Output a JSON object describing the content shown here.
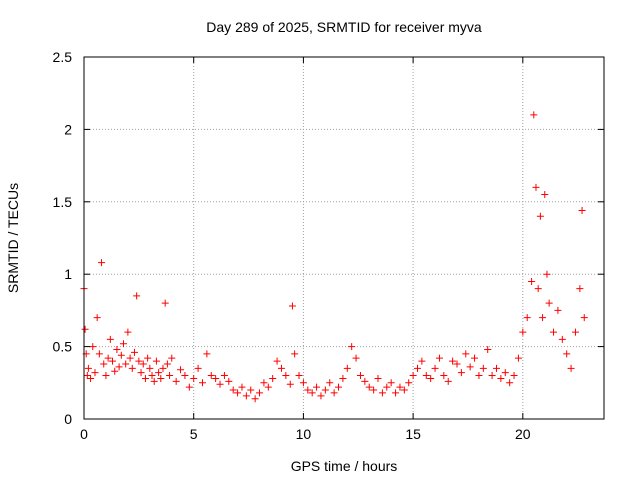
{
  "chart_data": {
    "type": "scatter",
    "title": "Day 289 of 2025, SRMTID for receiver myva",
    "xlabel": "GPS time / hours",
    "ylabel": "SRMTID / TECUs",
    "xlim": [
      0,
      23.7
    ],
    "ylim": [
      0,
      2.5
    ],
    "x_ticks": [
      0,
      5,
      10,
      15,
      20
    ],
    "x_tick_labels": [
      "0",
      "5",
      "10",
      "15",
      "20"
    ],
    "y_ticks": [
      0,
      0.5,
      1,
      1.5,
      2,
      2.5
    ],
    "y_tick_labels": [
      "0",
      "0.5",
      "1",
      "1.5",
      "2",
      "2.5"
    ],
    "grid": true,
    "marker": "+",
    "series": [
      {
        "name": "SRMTID",
        "color": "#ff0000",
        "x": [
          0.0,
          0.05,
          0.1,
          0.15,
          0.2,
          0.3,
          0.4,
          0.5,
          0.6,
          0.7,
          0.8,
          0.9,
          1.0,
          1.1,
          1.2,
          1.3,
          1.4,
          1.5,
          1.6,
          1.7,
          1.8,
          1.9,
          2.0,
          2.1,
          2.2,
          2.3,
          2.4,
          2.5,
          2.6,
          2.7,
          2.8,
          2.9,
          3.0,
          3.1,
          3.2,
          3.3,
          3.4,
          3.5,
          3.6,
          3.7,
          3.8,
          3.9,
          4.0,
          4.2,
          4.4,
          4.6,
          4.8,
          5.0,
          5.2,
          5.4,
          5.6,
          5.8,
          6.0,
          6.2,
          6.4,
          6.6,
          6.8,
          7.0,
          7.2,
          7.4,
          7.6,
          7.8,
          8.0,
          8.2,
          8.4,
          8.6,
          8.8,
          9.0,
          9.2,
          9.4,
          9.5,
          9.6,
          9.8,
          10.0,
          10.2,
          10.4,
          10.6,
          10.8,
          11.0,
          11.2,
          11.4,
          11.6,
          11.8,
          12.0,
          12.2,
          12.4,
          12.6,
          12.8,
          13.0,
          13.2,
          13.4,
          13.6,
          13.8,
          14.0,
          14.2,
          14.4,
          14.6,
          14.8,
          15.0,
          15.2,
          15.4,
          15.6,
          15.8,
          16.0,
          16.2,
          16.4,
          16.6,
          16.8,
          17.0,
          17.2,
          17.4,
          17.6,
          17.8,
          18.0,
          18.2,
          18.4,
          18.6,
          18.8,
          19.0,
          19.2,
          19.4,
          19.6,
          19.8,
          20.0,
          20.2,
          20.4,
          20.5,
          20.6,
          20.7,
          20.8,
          20.9,
          21.0,
          21.1,
          21.2,
          21.4,
          21.6,
          21.8,
          22.0,
          22.2,
          22.4,
          22.6,
          22.7,
          22.8
        ],
        "y": [
          0.9,
          0.62,
          0.45,
          0.3,
          0.35,
          0.28,
          0.5,
          0.32,
          0.7,
          0.45,
          1.08,
          0.38,
          0.3,
          0.42,
          0.55,
          0.4,
          0.33,
          0.48,
          0.36,
          0.44,
          0.52,
          0.38,
          0.6,
          0.42,
          0.35,
          0.46,
          0.85,
          0.4,
          0.32,
          0.38,
          0.28,
          0.42,
          0.35,
          0.3,
          0.26,
          0.4,
          0.32,
          0.28,
          0.35,
          0.8,
          0.38,
          0.3,
          0.42,
          0.26,
          0.34,
          0.3,
          0.22,
          0.28,
          0.35,
          0.25,
          0.45,
          0.3,
          0.28,
          0.24,
          0.3,
          0.26,
          0.2,
          0.18,
          0.22,
          0.16,
          0.2,
          0.14,
          0.18,
          0.25,
          0.22,
          0.28,
          0.4,
          0.35,
          0.3,
          0.24,
          0.78,
          0.45,
          0.3,
          0.25,
          0.2,
          0.18,
          0.22,
          0.16,
          0.2,
          0.25,
          0.18,
          0.22,
          0.28,
          0.35,
          0.5,
          0.42,
          0.3,
          0.26,
          0.22,
          0.2,
          0.28,
          0.18,
          0.22,
          0.25,
          0.18,
          0.22,
          0.2,
          0.25,
          0.3,
          0.35,
          0.4,
          0.3,
          0.28,
          0.35,
          0.42,
          0.3,
          0.26,
          0.4,
          0.38,
          0.32,
          0.45,
          0.36,
          0.42,
          0.3,
          0.35,
          0.48,
          0.3,
          0.35,
          0.28,
          0.32,
          0.25,
          0.3,
          0.42,
          0.6,
          0.7,
          0.95,
          2.1,
          1.6,
          0.9,
          1.4,
          0.7,
          1.55,
          1.0,
          0.8,
          0.6,
          0.75,
          0.55,
          0.45,
          0.35,
          0.6,
          0.9,
          1.44,
          0.7
        ]
      }
    ]
  }
}
